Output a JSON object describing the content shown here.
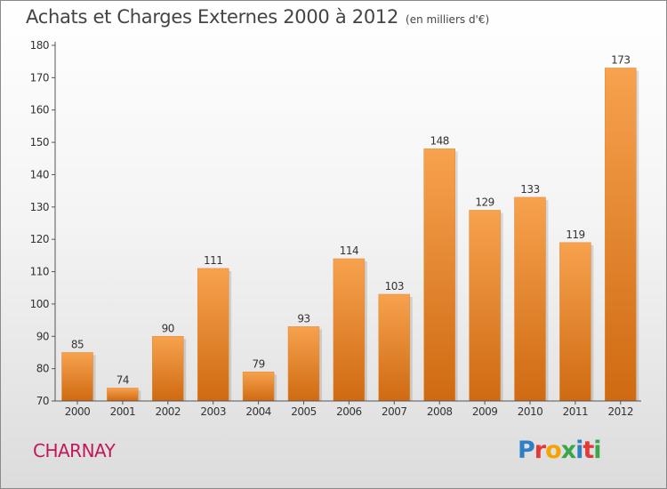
{
  "header": {
    "title": "Achats et Charges Externes 2000 à 2012",
    "unit": "(en milliers d'€)"
  },
  "footer": {
    "commune": "CHARNAY",
    "brand": "Proxiti"
  },
  "colors": {
    "bar_light": "#f7a24e",
    "bar_dark": "#cf6a12",
    "commune": "#c2185b",
    "brand_letters": [
      "#2e7fc4",
      "#e53935",
      "#f4a300",
      "#3aa64a",
      "#2e7fc4",
      "#e53935",
      "#3aa64a"
    ]
  },
  "chart_data": {
    "type": "bar",
    "title": "Achats et Charges Externes 2000 à 2012",
    "subtitle": "(en milliers d'€)",
    "categories": [
      "2000",
      "2001",
      "2002",
      "2003",
      "2004",
      "2005",
      "2006",
      "2007",
      "2008",
      "2009",
      "2010",
      "2011",
      "2012"
    ],
    "values": [
      85,
      74,
      90,
      111,
      79,
      93,
      114,
      103,
      148,
      129,
      133,
      119,
      173
    ],
    "ylim": [
      70,
      180
    ],
    "yticks": [
      70,
      80,
      90,
      100,
      110,
      120,
      130,
      140,
      150,
      160,
      170,
      180
    ],
    "grid": false,
    "data_labels": true
  }
}
